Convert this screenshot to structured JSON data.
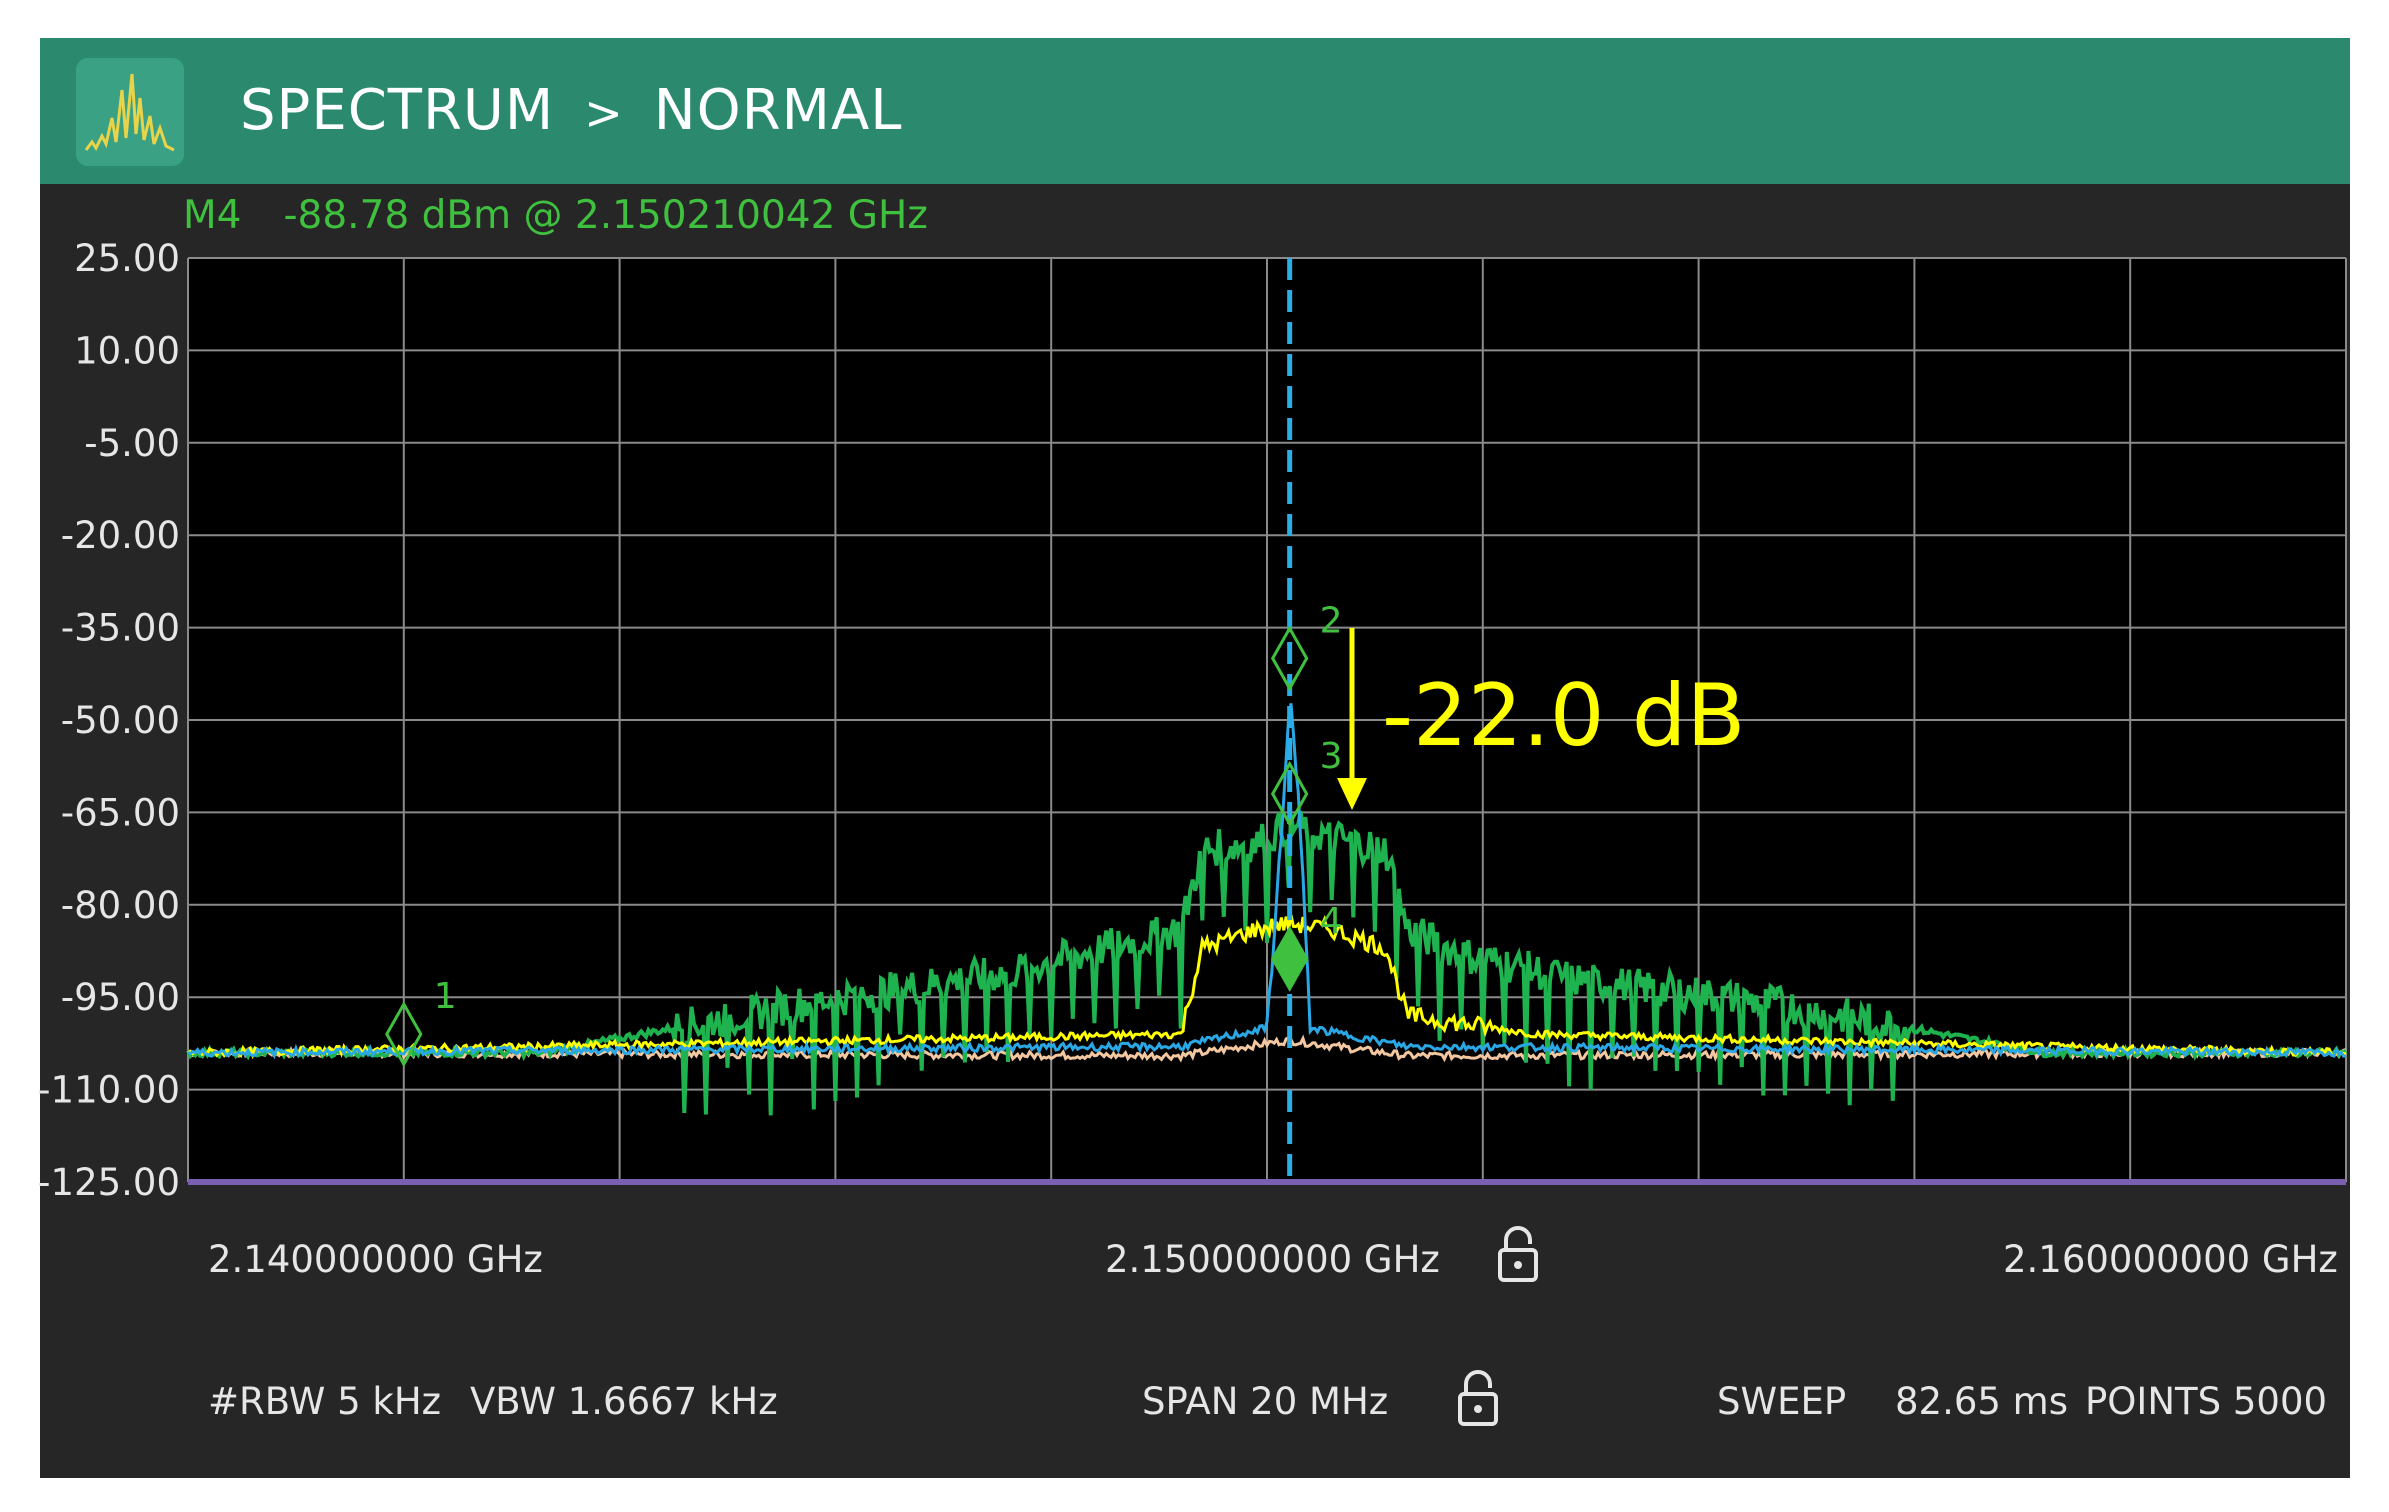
{
  "header": {
    "mode": "SPECTRUM",
    "separator": ">",
    "view": "NORMAL",
    "icon": "spectrum-app-icon"
  },
  "marker_readout": {
    "marker": "M4",
    "value": "-88.78  dBm  @  2.150210042 GHz"
  },
  "annotation": {
    "delta_label": "-22.0 dB",
    "arrow_color": "#ffff00"
  },
  "footer": {
    "start_freq": "2.140000000 GHz",
    "center_freq": "2.150000000 GHz",
    "stop_freq": "2.160000000 GHz",
    "rbw": "#RBW 5 kHz",
    "vbw": "VBW 1.6667 kHz",
    "span": "SPAN 20 MHz",
    "sweep_label": "SWEEP",
    "sweep_value": "82.65 ms",
    "points": "POINTS 5000",
    "lock_icon": "lock-icon"
  },
  "colors": {
    "header": "#2b8a6d",
    "panel": "#262626",
    "plot": "#000000",
    "trace_green": "#1fb34f",
    "trace_yellow": "#ffff00",
    "trace_blue": "#2aa8e6",
    "trace_orange": "#f3c7a0",
    "center_line": "#29aee8",
    "marker": "#3fc13f",
    "reference_line": "#7b5fb0"
  },
  "chart_data": {
    "type": "line",
    "x_unit": "GHz",
    "y_unit": "dBm",
    "xlim": [
      2.14,
      2.16
    ],
    "ylim": [
      -125,
      25
    ],
    "y_ticks": [
      "25.00",
      "10.00",
      "-5.00",
      "-20.00",
      "-35.00",
      "-50.00",
      "-65.00",
      "-80.00",
      "-95.00",
      "-110.00",
      "-125.00"
    ],
    "grid": true,
    "center_frequency": 2.150210042,
    "markers": [
      {
        "label": "1",
        "x": 2.142,
        "y": -101
      },
      {
        "label": "2",
        "x": 2.15021,
        "y": -40
      },
      {
        "label": "3",
        "x": 2.15021,
        "y": -62
      },
      {
        "label": "4",
        "x": 2.15021,
        "y": -88.78
      }
    ],
    "series": [
      {
        "color": "#1fb34f",
        "x": [
          2.14,
          2.1433,
          2.1457,
          2.1476,
          2.1485,
          2.1492,
          2.1494,
          2.1499,
          2.1502,
          2.1506,
          2.1511,
          2.1513,
          2.1518,
          2.1528,
          2.1547,
          2.1572,
          2.16
        ],
        "y": [
          -104,
          -104,
          -96,
          -91,
          -87,
          -84,
          -71,
          -70,
          -67,
          -69,
          -71,
          -84,
          -88,
          -92,
          -96,
          -104,
          -104
        ]
      },
      {
        "color": "#ffff00",
        "x": [
          2.14,
          2.1433,
          2.1492,
          2.1494,
          2.1499,
          2.1502,
          2.1506,
          2.1511,
          2.1513,
          2.1525,
          2.1572,
          2.16
        ],
        "y": [
          -104,
          -103,
          -101,
          -87,
          -84,
          -83,
          -84,
          -87,
          -98,
          -101,
          -103,
          -104
        ]
      },
      {
        "color": "#2aa8e6",
        "x": [
          2.14,
          2.1492,
          2.15,
          2.15015,
          2.15021,
          2.1503,
          2.1504,
          2.1513,
          2.16
        ],
        "y": [
          -104,
          -103,
          -100,
          -65,
          -45,
          -65,
          -100,
          -103,
          -104
        ]
      },
      {
        "color": "#f3c7a0",
        "x": [
          2.14,
          2.1492,
          2.1502,
          2.1513,
          2.16
        ],
        "y": [
          -104,
          -104.5,
          -102,
          -104.5,
          -104
        ]
      }
    ]
  }
}
